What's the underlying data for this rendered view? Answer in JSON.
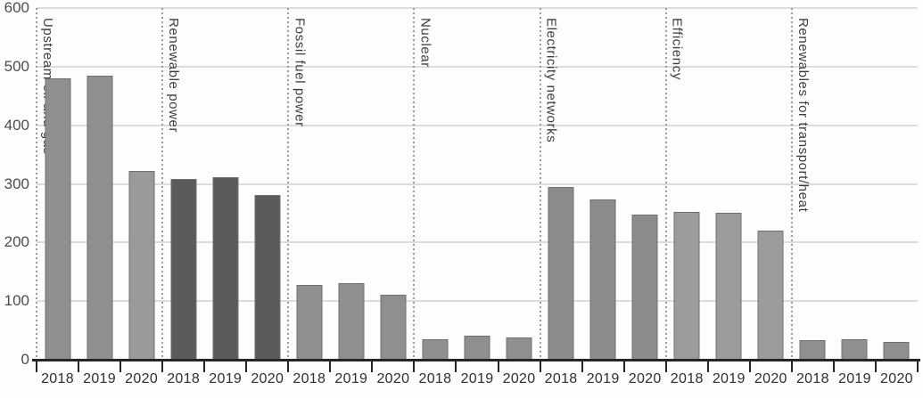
{
  "chart_data": {
    "type": "bar",
    "title": "",
    "xlabel": "",
    "ylabel": "",
    "ylim": [
      0,
      600
    ],
    "yticks": [
      0,
      100,
      200,
      300,
      400,
      500,
      600
    ],
    "grid": true,
    "legend_position": "none",
    "years": [
      "2018",
      "2019",
      "2020"
    ],
    "groups": [
      {
        "label": "Upstream oil and gas",
        "values": [
          480,
          485,
          322
        ],
        "colors": [
          "#8f8f8f",
          "#8f8f8f",
          "#9a9a9a"
        ]
      },
      {
        "label": "Renewable power",
        "values": [
          308,
          311,
          281
        ],
        "colors": [
          "#5b5b5b",
          "#5b5b5b",
          "#5b5b5b"
        ]
      },
      {
        "label": "Fossil fuel power",
        "values": [
          128,
          131,
          111
        ],
        "colors": [
          "#8f8f8f",
          "#8f8f8f",
          "#8f8f8f"
        ]
      },
      {
        "label": "Nuclear",
        "values": [
          35,
          41,
          38
        ],
        "colors": [
          "#8f8f8f",
          "#8f8f8f",
          "#8f8f8f"
        ]
      },
      {
        "label": "Electricity networks",
        "values": [
          294,
          274,
          248
        ],
        "colors": [
          "#8b8b8b",
          "#8b8b8b",
          "#8b8b8b"
        ]
      },
      {
        "label": "Efficiency",
        "values": [
          252,
          251,
          221
        ],
        "colors": [
          "#9c9c9c",
          "#9c9c9c",
          "#9c9c9c"
        ]
      },
      {
        "label": "Renewables for transport/heat",
        "values": [
          34,
          35,
          31
        ],
        "colors": [
          "#8f8f8f",
          "#8f8f8f",
          "#8f8f8f"
        ]
      }
    ],
    "style": {
      "bar_border_color": "#6f6f6f",
      "grid_color": "#dcdcdc",
      "separator_color": "#9c9c9c",
      "axis_color": "#262626",
      "y_label_color": "#4d4d4d",
      "x_label_color": "#2f2f2f",
      "category_label_color": "#3d3d3d",
      "background_color": "#fdfdfd"
    }
  }
}
